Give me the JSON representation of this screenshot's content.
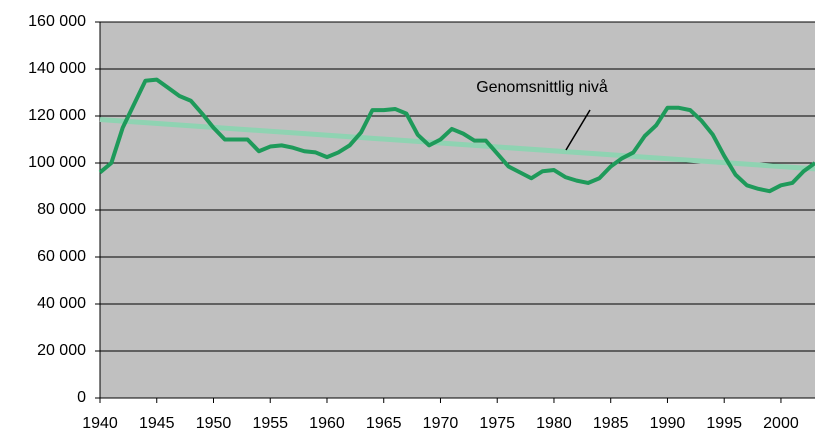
{
  "chart_data": {
    "type": "line",
    "series": [
      {
        "color": "#1e9a5a",
        "x": [
          1940,
          1941,
          1942,
          1943,
          1944,
          1945,
          1946,
          1947,
          1948,
          1949,
          1950,
          1951,
          1952,
          1953,
          1954,
          1955,
          1956,
          1957,
          1958,
          1959,
          1960,
          1961,
          1962,
          1963,
          1964,
          1965,
          1966,
          1967,
          1968,
          1969,
          1970,
          1971,
          1972,
          1973,
          1974,
          1975,
          1976,
          1977,
          1978,
          1979,
          1980,
          1981,
          1982,
          1983,
          1984,
          1985,
          1986,
          1987,
          1988,
          1989,
          1990,
          1991,
          1992,
          1993,
          1994,
          1995,
          1996,
          1997,
          1998,
          1999,
          2000,
          2001,
          2002,
          2003
        ],
        "values": [
          96000,
          100000,
          115000,
          125000,
          135000,
          135500,
          132000,
          128500,
          126500,
          121000,
          115000,
          110000,
          110000,
          110000,
          105000,
          107000,
          107500,
          106500,
          105000,
          104500,
          102500,
          104500,
          107500,
          113000,
          122500,
          122500,
          123000,
          121000,
          112000,
          107500,
          110000,
          114500,
          112500,
          109500,
          109500,
          104000,
          98500,
          96000,
          93500,
          96500,
          97000,
          94000,
          92500,
          91500,
          93500,
          98500,
          102000,
          104500,
          111500,
          116000,
          123500,
          123500,
          122500,
          118000,
          112000,
          103000,
          95000,
          90500,
          89000,
          88000,
          90500,
          91500,
          96500,
          100000
        ]
      },
      {
        "name": "Genomsnittlig nivå",
        "color": "#8fd3b2",
        "x": [
          1940,
          2003
        ],
        "values": [
          118500,
          97500
        ]
      }
    ],
    "xlim": [
      1940,
      2003
    ],
    "xticks": [
      1940,
      1945,
      1950,
      1955,
      1960,
      1965,
      1970,
      1975,
      1980,
      1985,
      1990,
      1995,
      2000
    ],
    "ylim": [
      0,
      160000
    ],
    "yticks": [
      {
        "value": 0,
        "label": "0"
      },
      {
        "value": 20000,
        "label": "20 000"
      },
      {
        "value": 40000,
        "label": "40 000"
      },
      {
        "value": 60000,
        "label": "60 000"
      },
      {
        "value": 80000,
        "label": "80 000"
      },
      {
        "value": 100000,
        "label": "100 000"
      },
      {
        "value": 120000,
        "label": "120 000"
      },
      {
        "value": 140000,
        "label": "140 000"
      },
      {
        "value": 160000,
        "label": "160 000"
      }
    ],
    "grid": true,
    "background": "#c0c0c0"
  }
}
